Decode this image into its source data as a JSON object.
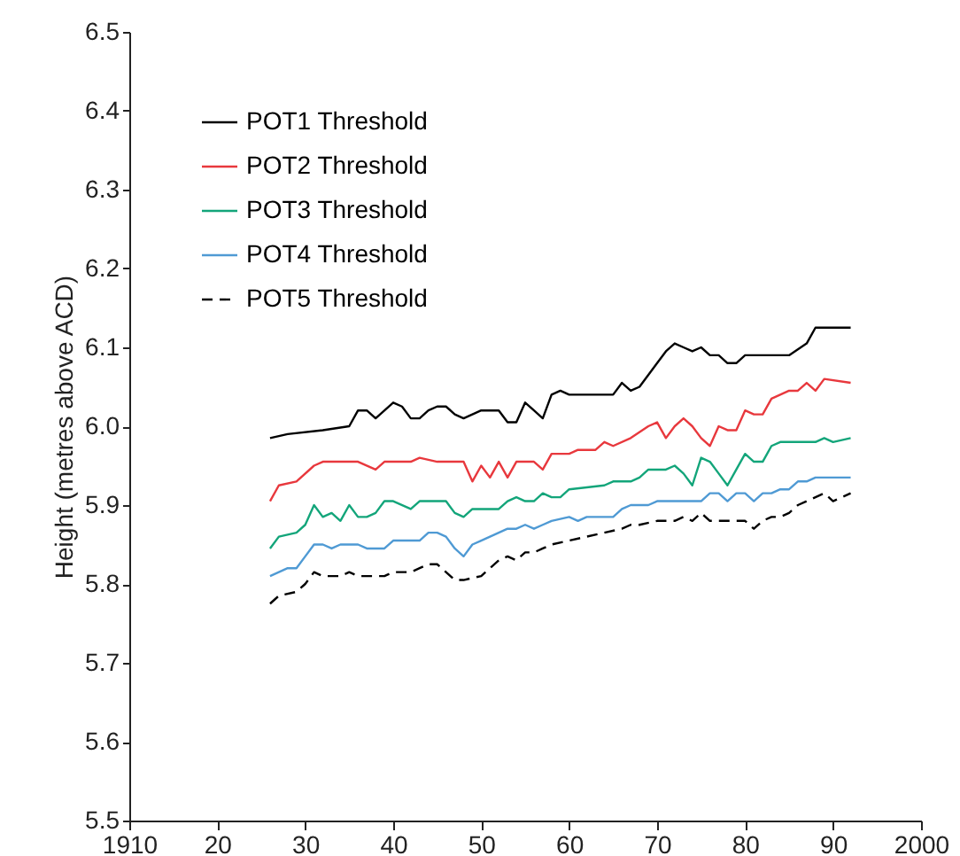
{
  "chart_data": {
    "type": "line",
    "ylabel": "Height (metres above ACD)",
    "xlim": [
      1910,
      2000
    ],
    "ylim": [
      5.5,
      6.5
    ],
    "xticks": [
      1910,
      {
        "value": 1920,
        "label": "20"
      },
      {
        "value": 1930,
        "label": "30"
      },
      {
        "value": 1940,
        "label": "40"
      },
      {
        "value": 1950,
        "label": "50"
      },
      {
        "value": 1960,
        "label": "60"
      },
      {
        "value": 1970,
        "label": "70"
      },
      {
        "value": 1980,
        "label": "80"
      },
      {
        "value": 1990,
        "label": "90"
      },
      2000
    ],
    "yticks": [
      5.5,
      5.6,
      5.7,
      5.8,
      5.9,
      {
        "value": 6,
        "label": "6.0"
      },
      6.1,
      6.2,
      6.3,
      6.4,
      6.5
    ],
    "grid": false,
    "legend": "top left",
    "marker": "none",
    "series": [
      {
        "name": "POT1 Threshold",
        "color": "#000000",
        "line_style": "solid",
        "x": [
          1926,
          1928,
          1932,
          1935,
          1936,
          1937,
          1938,
          1940,
          1941,
          1942,
          1943,
          1944,
          1945,
          1946,
          1947,
          1948,
          1950,
          1952,
          1953,
          1954,
          1955,
          1956,
          1957,
          1958,
          1959,
          1960,
          1965,
          1966,
          1967,
          1968,
          1970,
          1971,
          1972,
          1973,
          1974,
          1975,
          1976,
          1977,
          1978,
          1979,
          1980,
          1985,
          1987,
          1988,
          1992
        ],
        "values": [
          5.985,
          5.99,
          5.995,
          6.0,
          6.02,
          6.02,
          6.01,
          6.03,
          6.025,
          6.01,
          6.01,
          6.02,
          6.025,
          6.025,
          6.015,
          6.01,
          6.02,
          6.02,
          6.005,
          6.005,
          6.03,
          6.02,
          6.01,
          6.04,
          6.045,
          6.04,
          6.04,
          6.055,
          6.045,
          6.05,
          6.08,
          6.095,
          6.105,
          6.1,
          6.095,
          6.1,
          6.09,
          6.09,
          6.08,
          6.08,
          6.09,
          6.09,
          6.105,
          6.125,
          6.125
        ]
      },
      {
        "name": "POT2 Threshold",
        "color": "#e8383d",
        "line_style": "solid",
        "x": [
          1926,
          1927,
          1929,
          1931,
          1932,
          1936,
          1938,
          1939,
          1942,
          1943,
          1945,
          1946,
          1948,
          1949,
          1950,
          1951,
          1952,
          1953,
          1954,
          1956,
          1957,
          1958,
          1960,
          1961,
          1963,
          1964,
          1965,
          1967,
          1969,
          1970,
          1971,
          1972,
          1973,
          1974,
          1975,
          1976,
          1977,
          1978,
          1979,
          1980,
          1981,
          1982,
          1983,
          1984,
          1985,
          1986,
          1987,
          1988,
          1989,
          1992
        ],
        "values": [
          5.905,
          5.925,
          5.93,
          5.95,
          5.955,
          5.955,
          5.945,
          5.955,
          5.955,
          5.96,
          5.955,
          5.955,
          5.955,
          5.93,
          5.95,
          5.935,
          5.955,
          5.935,
          5.955,
          5.955,
          5.945,
          5.965,
          5.965,
          5.97,
          5.97,
          5.98,
          5.975,
          5.985,
          6.0,
          6.005,
          5.985,
          6.0,
          6.01,
          6.0,
          5.985,
          5.975,
          6.0,
          5.995,
          5.995,
          6.02,
          6.015,
          6.015,
          6.035,
          6.04,
          6.045,
          6.045,
          6.055,
          6.045,
          6.06,
          6.055
        ]
      },
      {
        "name": "POT3 Threshold",
        "color": "#13a57a",
        "line_style": "solid",
        "x": [
          1926,
          1927,
          1929,
          1930,
          1931,
          1932,
          1933,
          1934,
          1935,
          1936,
          1937,
          1938,
          1939,
          1940,
          1942,
          1943,
          1945,
          1946,
          1947,
          1948,
          1949,
          1952,
          1953,
          1954,
          1955,
          1956,
          1957,
          1958,
          1959,
          1960,
          1964,
          1965,
          1967,
          1968,
          1969,
          1971,
          1972,
          1973,
          1974,
          1975,
          1976,
          1977,
          1978,
          1979,
          1980,
          1981,
          1982,
          1983,
          1984,
          1988,
          1989,
          1990,
          1992
        ],
        "values": [
          5.845,
          5.86,
          5.865,
          5.875,
          5.9,
          5.885,
          5.89,
          5.88,
          5.9,
          5.885,
          5.885,
          5.89,
          5.905,
          5.905,
          5.895,
          5.905,
          5.905,
          5.905,
          5.89,
          5.885,
          5.895,
          5.895,
          5.905,
          5.91,
          5.905,
          5.905,
          5.915,
          5.91,
          5.91,
          5.92,
          5.925,
          5.93,
          5.93,
          5.935,
          5.945,
          5.945,
          5.95,
          5.94,
          5.925,
          5.96,
          5.955,
          5.94,
          5.925,
          5.945,
          5.965,
          5.955,
          5.955,
          5.975,
          5.98,
          5.98,
          5.985,
          5.98,
          5.985
        ]
      },
      {
        "name": "POT4 Threshold",
        "color": "#4f9ad4",
        "line_style": "solid",
        "x": [
          1926,
          1928,
          1929,
          1930,
          1931,
          1932,
          1933,
          1934,
          1936,
          1937,
          1939,
          1940,
          1943,
          1944,
          1945,
          1946,
          1947,
          1948,
          1949,
          1950,
          1951,
          1952,
          1953,
          1954,
          1955,
          1956,
          1957,
          1958,
          1960,
          1961,
          1962,
          1965,
          1966,
          1967,
          1969,
          1970,
          1975,
          1976,
          1977,
          1978,
          1979,
          1980,
          1981,
          1982,
          1983,
          1984,
          1985,
          1986,
          1987,
          1988,
          1992
        ],
        "values": [
          5.81,
          5.82,
          5.82,
          5.835,
          5.85,
          5.85,
          5.845,
          5.85,
          5.85,
          5.845,
          5.845,
          5.855,
          5.855,
          5.865,
          5.865,
          5.86,
          5.845,
          5.835,
          5.85,
          5.855,
          5.86,
          5.865,
          5.87,
          5.87,
          5.875,
          5.87,
          5.875,
          5.88,
          5.885,
          5.88,
          5.885,
          5.885,
          5.895,
          5.9,
          5.9,
          5.905,
          5.905,
          5.915,
          5.915,
          5.905,
          5.915,
          5.915,
          5.905,
          5.915,
          5.915,
          5.92,
          5.92,
          5.93,
          5.93,
          5.935,
          5.935
        ]
      },
      {
        "name": "POT5 Threshold",
        "color": "#000000",
        "line_style": "dashed",
        "x": [
          1926,
          1927,
          1929,
          1930,
          1931,
          1932,
          1934,
          1935,
          1936,
          1939,
          1940,
          1942,
          1943,
          1944,
          1945,
          1946,
          1947,
          1948,
          1950,
          1951,
          1952,
          1953,
          1954,
          1955,
          1956,
          1957,
          1958,
          1960,
          1962,
          1964,
          1966,
          1967,
          1968,
          1970,
          1972,
          1973,
          1974,
          1975,
          1976,
          1980,
          1981,
          1982,
          1983,
          1984,
          1985,
          1986,
          1987,
          1988,
          1989,
          1990,
          1992
        ],
        "values": [
          5.775,
          5.785,
          5.79,
          5.8,
          5.815,
          5.81,
          5.81,
          5.815,
          5.81,
          5.81,
          5.815,
          5.815,
          5.82,
          5.825,
          5.825,
          5.815,
          5.805,
          5.805,
          5.81,
          5.82,
          5.83,
          5.835,
          5.83,
          5.84,
          5.84,
          5.845,
          5.85,
          5.855,
          5.86,
          5.865,
          5.87,
          5.875,
          5.875,
          5.88,
          5.88,
          5.885,
          5.88,
          5.89,
          5.88,
          5.88,
          5.87,
          5.88,
          5.885,
          5.885,
          5.89,
          5.9,
          5.905,
          5.91,
          5.915,
          5.905,
          5.915
        ]
      }
    ]
  }
}
